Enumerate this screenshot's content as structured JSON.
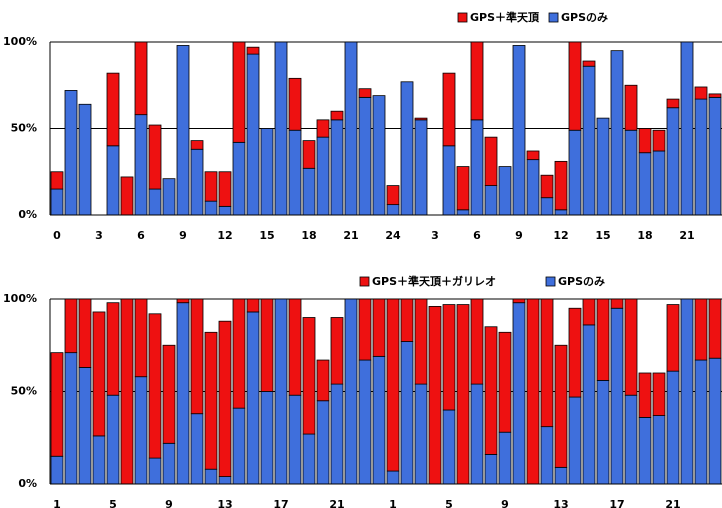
{
  "chart_data": [
    {
      "type": "stacked_bar",
      "legend": "top-right",
      "categories": [
        "0",
        null,
        null,
        "3",
        null,
        null,
        "6",
        null,
        null,
        "9",
        null,
        null,
        "12",
        null,
        null,
        "15",
        null,
        null,
        "18",
        null,
        null,
        "21",
        null,
        null,
        "24",
        null,
        null,
        "3",
        null,
        null,
        "6",
        null,
        null,
        "9",
        null,
        null,
        "12",
        null,
        null,
        "15",
        null,
        null,
        "18",
        null,
        null,
        "21",
        null,
        null
      ],
      "series": [
        {
          "name": "GPSのみ",
          "color": "#3f6fdc",
          "values": [
            15,
            72,
            64,
            0,
            40,
            0,
            58,
            15,
            21,
            98,
            38,
            8,
            5,
            42,
            93,
            50,
            100,
            49,
            27,
            45,
            55,
            100,
            68,
            69,
            6,
            77,
            55,
            0,
            40,
            3,
            55,
            17,
            28,
            98,
            32,
            10,
            3,
            49,
            86,
            56,
            95,
            49,
            36,
            37,
            62,
            100,
            67,
            68
          ]
        },
        {
          "name": "GPS＋準天頂",
          "color": "#ee1111",
          "values": [
            10,
            0,
            0,
            0,
            42,
            22,
            42,
            37,
            0,
            0,
            5,
            17,
            20,
            58,
            4,
            0,
            0,
            30,
            16,
            10,
            5,
            0,
            5,
            0,
            11,
            0,
            1,
            0,
            42,
            25,
            45,
            28,
            0,
            0,
            5,
            13,
            28,
            51,
            3,
            0,
            0,
            26,
            14,
            12,
            5,
            0,
            7,
            2
          ]
        }
      ],
      "ylim": [
        0,
        100
      ],
      "yticks": [
        {
          "value": 0,
          "label": "0%"
        },
        {
          "value": 50,
          "label": "50%"
        },
        {
          "value": 100,
          "label": "100%"
        }
      ],
      "grid": true
    },
    {
      "type": "stacked_bar",
      "legend": "top-center",
      "categories": [
        "1",
        null,
        null,
        null,
        "5",
        null,
        null,
        null,
        "9",
        null,
        null,
        null,
        "13",
        null,
        null,
        null,
        "17",
        null,
        null,
        null,
        "21",
        null,
        null,
        null,
        "1",
        null,
        null,
        null,
        "5",
        null,
        null,
        null,
        "9",
        null,
        null,
        null,
        "13",
        null,
        null,
        null,
        "17",
        null,
        null,
        null,
        "21",
        null,
        null,
        null
      ],
      "series": [
        {
          "name": "GPSのみ",
          "color": "#3f6fdc",
          "values": [
            15,
            71,
            63,
            26,
            48,
            0,
            58,
            14,
            22,
            98,
            38,
            8,
            4,
            41,
            93,
            50,
            100,
            48,
            27,
            45,
            54,
            100,
            67,
            69,
            7,
            77,
            54,
            0,
            40,
            0,
            54,
            16,
            28,
            98,
            0,
            31,
            9,
            47,
            86,
            56,
            95,
            48,
            36,
            37,
            61,
            100,
            67,
            68
          ]
        },
        {
          "name": "GPS＋準天頂＋ガリレオ",
          "color": "#ee1111",
          "values": [
            56,
            29,
            37,
            67,
            50,
            100,
            42,
            78,
            53,
            2,
            62,
            74,
            84,
            59,
            7,
            50,
            0,
            52,
            63,
            22,
            36,
            0,
            33,
            31,
            93,
            23,
            46,
            96,
            57,
            97,
            46,
            69,
            54,
            2,
            100,
            69,
            66,
            48,
            14,
            44,
            5,
            52,
            24,
            23,
            36,
            0,
            33,
            32
          ]
        }
      ],
      "ylim": [
        0,
        100
      ],
      "yticks": [
        {
          "value": 0,
          "label": "0%"
        },
        {
          "value": 50,
          "label": "50%"
        },
        {
          "value": 100,
          "label": "100%"
        }
      ],
      "grid": true
    }
  ]
}
